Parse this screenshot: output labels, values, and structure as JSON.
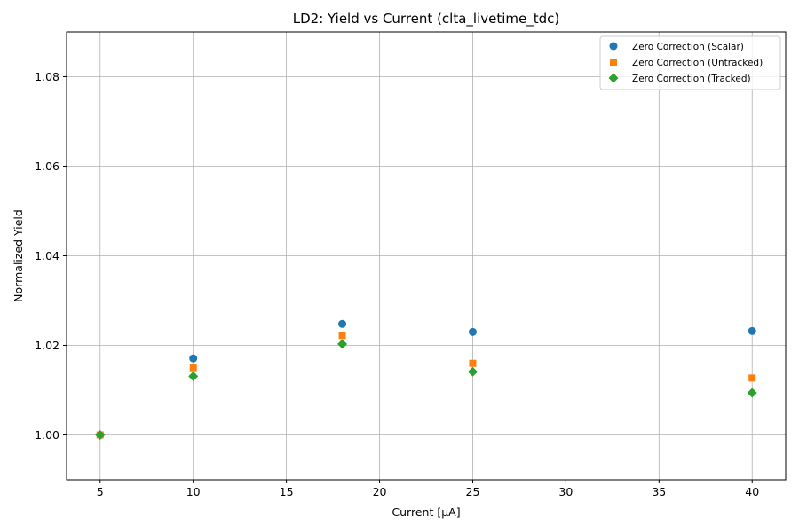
{
  "chart_data": {
    "type": "scatter",
    "title": "LD2: Yield vs Current (clta_livetime_tdc)",
    "xlabel": "Current [μA]",
    "ylabel": "Normalized Yield",
    "xlim": [
      3.2,
      41.8
    ],
    "ylim": [
      0.99,
      1.09
    ],
    "xticks": [
      5,
      10,
      15,
      20,
      25,
      30,
      35,
      40
    ],
    "xtick_labels": [
      "5",
      "10",
      "15",
      "20",
      "25",
      "30",
      "35",
      "40"
    ],
    "yticks": [
      1.0,
      1.02,
      1.04,
      1.06,
      1.08
    ],
    "ytick_labels": [
      "1.00",
      "1.02",
      "1.04",
      "1.06",
      "1.08"
    ],
    "grid": true,
    "legend_position": "top-right",
    "series": [
      {
        "name": "Zero Correction (Scalar)",
        "marker": "circle",
        "color": "#1f77b4",
        "x": [
          5,
          10,
          18,
          25,
          40
        ],
        "y": [
          1.0,
          1.0171,
          1.0248,
          1.023,
          1.0232
        ]
      },
      {
        "name": "Zero Correction (Untracked)",
        "marker": "square",
        "color": "#ff7f0e",
        "x": [
          5,
          10,
          18,
          25,
          40
        ],
        "y": [
          1.0,
          1.015,
          1.0222,
          1.016,
          1.0127
        ]
      },
      {
        "name": "Zero Correction (Tracked)",
        "marker": "diamond",
        "color": "#2ca02c",
        "x": [
          5,
          10,
          18,
          25,
          40
        ],
        "y": [
          1.0,
          1.0131,
          1.0203,
          1.0141,
          1.0094
        ]
      }
    ]
  }
}
